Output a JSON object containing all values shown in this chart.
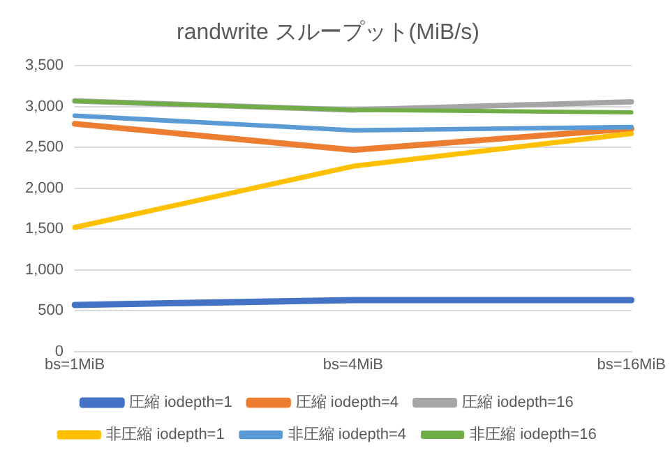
{
  "chart_data": {
    "type": "line",
    "title": "randwrite スループット(MiB/s)",
    "categories": [
      "bs=1MiB",
      "bs=4MiB",
      "bs=16MiB"
    ],
    "series": [
      {
        "name": "圧縮 iodepth=1",
        "color": "#4472c4",
        "values": [
          570,
          630,
          630
        ]
      },
      {
        "name": "圧縮 iodepth=4",
        "color": "#ed7d31",
        "values": [
          2790,
          2470,
          2730
        ]
      },
      {
        "name": "圧縮 iodepth=16",
        "color": "#a5a5a5",
        "values": [
          3070,
          2960,
          3060
        ]
      },
      {
        "name": "非圧縮 iodepth=1",
        "color": "#ffc000",
        "values": [
          1520,
          2270,
          2670
        ]
      },
      {
        "name": "非圧縮 iodepth=4",
        "color": "#5b9bd5",
        "values": [
          2890,
          2710,
          2750
        ]
      },
      {
        "name": "非圧縮 iodepth=16",
        "color": "#70ad47",
        "values": [
          3070,
          2960,
          2930
        ]
      }
    ],
    "ylim": [
      0,
      3500
    ],
    "yticks": [
      {
        "value": 0,
        "label": "0"
      },
      {
        "value": 500,
        "label": "500"
      },
      {
        "value": 1000,
        "label": "1,000"
      },
      {
        "value": 1500,
        "label": "1,500"
      },
      {
        "value": 2000,
        "label": "2,000"
      },
      {
        "value": 2500,
        "label": "2,500"
      },
      {
        "value": 3000,
        "label": "3,000"
      },
      {
        "value": 3500,
        "label": "3,500"
      }
    ],
    "grid": "y",
    "legend": "bottom",
    "marker": "none",
    "line_style": "solid"
  }
}
